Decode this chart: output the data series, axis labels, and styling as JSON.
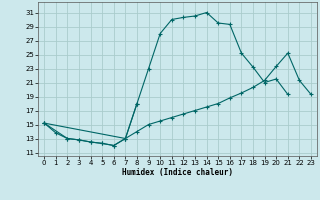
{
  "xlabel": "Humidex (Indice chaleur)",
  "xlim": [
    -0.5,
    23.5
  ],
  "ylim": [
    10.5,
    32.5
  ],
  "yticks": [
    11,
    13,
    15,
    17,
    19,
    21,
    23,
    25,
    27,
    29,
    31
  ],
  "xticks": [
    0,
    1,
    2,
    3,
    4,
    5,
    6,
    7,
    8,
    9,
    10,
    11,
    12,
    13,
    14,
    15,
    16,
    17,
    18,
    19,
    20,
    21,
    22,
    23
  ],
  "bg_color": "#cce8ec",
  "grid_color": "#aacccc",
  "line_color": "#006666",
  "curve1_x": [
    0,
    1,
    2,
    3,
    4,
    5,
    6,
    7,
    8,
    9,
    10,
    11,
    12,
    13,
    14,
    15,
    16,
    17,
    18,
    19,
    20,
    21
  ],
  "curve1_y": [
    15.2,
    13.8,
    13.0,
    12.8,
    12.5,
    12.3,
    12.0,
    13.0,
    18.0,
    23.0,
    28.0,
    30.0,
    30.3,
    30.5,
    31.0,
    29.5,
    29.3,
    25.2,
    23.2,
    21.0,
    21.5,
    19.3
  ],
  "curve2_x": [
    0,
    2,
    3,
    4,
    5,
    6,
    7,
    8
  ],
  "curve2_y": [
    15.2,
    13.0,
    12.8,
    12.5,
    12.3,
    12.0,
    13.0,
    18.0
  ],
  "curve3_x": [
    0,
    7,
    8,
    9,
    10,
    11,
    12,
    13,
    14,
    15,
    16,
    17,
    18,
    19,
    20,
    21,
    22,
    23
  ],
  "curve3_y": [
    15.2,
    13.0,
    14.0,
    15.0,
    15.5,
    16.0,
    16.5,
    17.0,
    17.5,
    18.0,
    18.8,
    19.5,
    20.3,
    21.3,
    23.3,
    25.2,
    21.3,
    19.3
  ]
}
